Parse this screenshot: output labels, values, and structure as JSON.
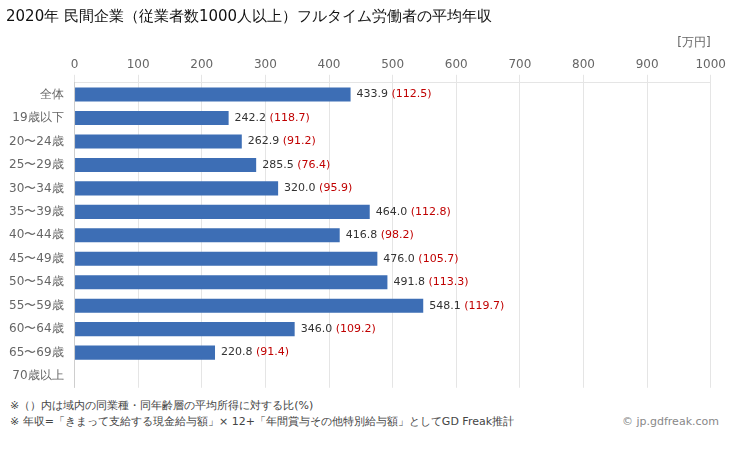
{
  "chart_data": {
    "type": "bar",
    "orientation": "horizontal",
    "title": "2020年 民間企業（従業者数1000人以上）フルタイム労働者の平均年収",
    "xlabel": "[万円]",
    "categories": [
      "全体",
      "19歳以下",
      "20〜24歳",
      "25〜29歳",
      "30〜34歳",
      "35〜39歳",
      "40〜44歳",
      "45〜49歳",
      "50〜54歳",
      "55〜59歳",
      "60〜64歳",
      "65〜69歳",
      "70歳以上"
    ],
    "values": [
      433.9,
      242.2,
      262.9,
      285.5,
      320.0,
      464.0,
      416.8,
      476.0,
      491.8,
      548.1,
      346.0,
      220.8,
      0
    ],
    "value_labels": [
      "433.9",
      "242.2",
      "262.9",
      "285.5",
      "320.0",
      "464.0",
      "416.8",
      "476.0",
      "491.8",
      "548.1",
      "346.0",
      "220.8",
      null
    ],
    "data_labels": true,
    "color": "#3d6eb5",
    "xlim": [
      0,
      1000
    ],
    "xticks": [
      0,
      100,
      200,
      300,
      400,
      500,
      600,
      700,
      800,
      900,
      1000
    ],
    "grid": true,
    "legend": false,
    "annotations": [
      {
        "category": "全体",
        "text": "(112.5)",
        "color": "#c00000"
      },
      {
        "category": "19歳以下",
        "text": "(118.7)",
        "color": "#c00000"
      },
      {
        "category": "20〜24歳",
        "text": "(91.2)",
        "color": "#c00000"
      },
      {
        "category": "25〜29歳",
        "text": "(76.4)",
        "color": "#c00000"
      },
      {
        "category": "30〜34歳",
        "text": "(95.9)",
        "color": "#c00000"
      },
      {
        "category": "35〜39歳",
        "text": "(112.8)",
        "color": "#c00000"
      },
      {
        "category": "40〜44歳",
        "text": "(98.2)",
        "color": "#c00000"
      },
      {
        "category": "45〜49歳",
        "text": "(105.7)",
        "color": "#c00000"
      },
      {
        "category": "50〜54歳",
        "text": "(113.3)",
        "color": "#c00000"
      },
      {
        "category": "55〜59歳",
        "text": "(119.7)",
        "color": "#c00000"
      },
      {
        "category": "60〜64歳",
        "text": "(109.2)",
        "color": "#c00000"
      },
      {
        "category": "65〜69歳",
        "text": "(91.4)",
        "color": "#c00000"
      }
    ],
    "notes": [
      "※（）内は域内の同業種・同年齢層の平均所得に対する比(%)",
      "※ 年収=「きまって支給する現金給与額」× 12+「年間賞与その他特別給与額」としてGD Freak推計",
      "© jp.gdfreak.com"
    ]
  }
}
